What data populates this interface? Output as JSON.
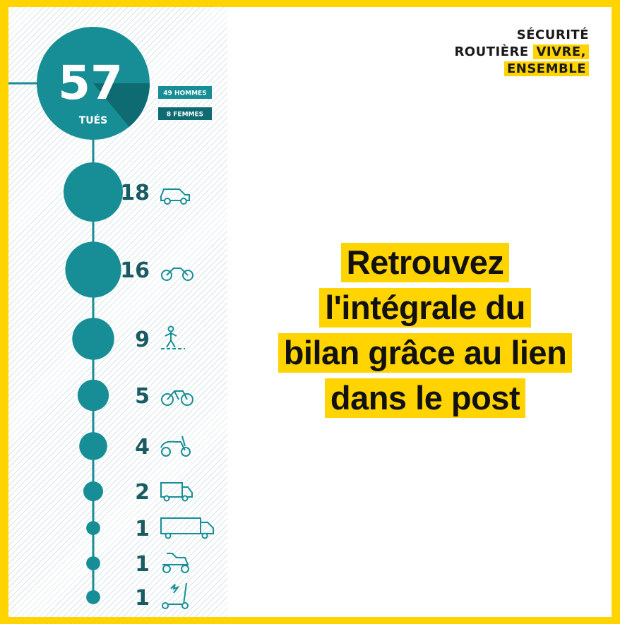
{
  "logo": {
    "line1": "SÉCURITÉ",
    "line2a": "ROUTIÈRE",
    "line2b": "VIVRE,",
    "line3": "ENSEMBLE"
  },
  "headline": {
    "lines": [
      "Retrouvez",
      "l'intégrale du",
      "bilan grâce au lien",
      "dans le post"
    ]
  },
  "colors": {
    "teal": "#178e96",
    "teal_dark": "#0f6b72",
    "yellow": "#ffd400",
    "number_text": "#1a5a63"
  },
  "chart_data": {
    "type": "bubble-timeline",
    "total": {
      "value": 57,
      "label": "TUÉS"
    },
    "breakdown": [
      {
        "label": "49 HOMMES",
        "value": 49
      },
      {
        "label": "8 FEMMES",
        "value": 8
      }
    ],
    "categories": [
      {
        "value": 18,
        "icon": "car-icon"
      },
      {
        "value": 16,
        "icon": "motorcycle-icon"
      },
      {
        "value": 9,
        "icon": "pedestrian-icon"
      },
      {
        "value": 5,
        "icon": "bicycle-icon"
      },
      {
        "value": 4,
        "icon": "scooter-icon"
      },
      {
        "value": 2,
        "icon": "van-icon"
      },
      {
        "value": 1,
        "icon": "truck-icon"
      },
      {
        "value": 1,
        "icon": "quad-icon"
      },
      {
        "value": 1,
        "icon": "escooter-icon"
      }
    ]
  }
}
